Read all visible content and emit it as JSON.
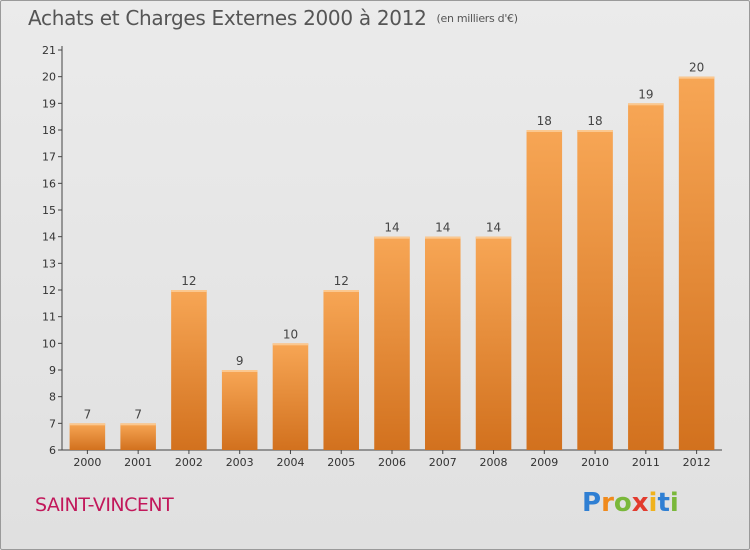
{
  "chart_data": {
    "type": "bar",
    "title": "Achats et Charges Externes 2000 à 2012",
    "subtitle": "(en milliers d'€)",
    "categories": [
      "2000",
      "2001",
      "2002",
      "2003",
      "2004",
      "2005",
      "2006",
      "2007",
      "2008",
      "2009",
      "2010",
      "2011",
      "2012"
    ],
    "values": [
      7,
      7,
      12,
      9,
      10,
      12,
      14,
      14,
      14,
      18,
      18,
      19,
      20
    ],
    "ylim": [
      6,
      21
    ],
    "yticks": [
      6,
      7,
      8,
      9,
      10,
      11,
      12,
      13,
      14,
      15,
      16,
      17,
      18,
      19,
      20,
      21
    ],
    "grid": false,
    "xlabel": "",
    "ylabel": "",
    "bar_color_top": "#f7a655",
    "bar_color_bottom": "#d2711e"
  },
  "footer": {
    "place": "SAINT-VINCENT",
    "logo_letters": [
      {
        "ch": "P",
        "color": "#2f7fd3"
      },
      {
        "ch": "r",
        "color": "#f08a1c"
      },
      {
        "ch": "o",
        "color": "#7ab83a"
      },
      {
        "ch": "x",
        "color": "#e23b2e"
      },
      {
        "ch": "i",
        "color": "#f0b21c"
      },
      {
        "ch": "t",
        "color": "#2f7fd3"
      },
      {
        "ch": "i",
        "color": "#7ab83a"
      }
    ]
  }
}
